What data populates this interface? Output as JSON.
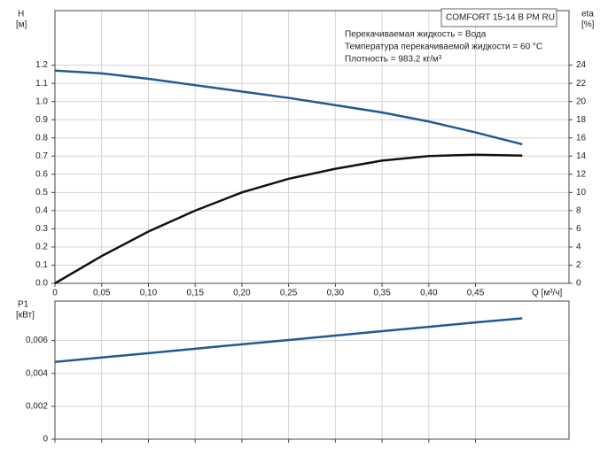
{
  "chart_data": [
    {
      "type": "line",
      "legend_title": "COMFORT 15-14 B PM RU",
      "annotations": [
        "Перекачиваемая жидкость = Вода",
        "Температура перекачиваемой жидкости = 60 °C",
        "Плотность = 983.2 кг/м³"
      ],
      "y_label": "H",
      "y_unit": "[м]",
      "y2_label": "eta",
      "y2_unit": "[%]",
      "x_label": "Q [м³/ч]",
      "x": [
        0,
        0.05,
        0.1,
        0.15,
        0.2,
        0.25,
        0.3,
        0.35,
        0.4,
        0.45,
        0.5
      ],
      "series": [
        {
          "color": "#1f5a96",
          "values": [
            1.17,
            1.155,
            1.125,
            1.09,
            1.055,
            1.02,
            0.98,
            0.94,
            0.89,
            0.83,
            0.765
          ]
        },
        {
          "color": "#111111",
          "axis": "y2",
          "values": [
            0,
            3.0,
            5.7,
            8.0,
            10.0,
            11.5,
            12.6,
            13.5,
            14.0,
            14.15,
            14.05
          ]
        }
      ],
      "xlim": [
        0,
        0.55
      ],
      "xticks": [
        0,
        {
          "value": 0.05,
          "label": "0,05"
        },
        {
          "value": 0.1,
          "label": "0,10"
        },
        {
          "value": 0.15,
          "label": "0,15"
        },
        {
          "value": 0.2,
          "label": "0,20"
        },
        {
          "value": 0.25,
          "label": "0,25"
        },
        {
          "value": 0.3,
          "label": "0,30"
        },
        {
          "value": 0.35,
          "label": "0,35"
        },
        {
          "value": 0.4,
          "label": "0,40"
        },
        {
          "value": 0.45,
          "label": "0,45"
        }
      ],
      "ylim": [
        0,
        1.5
      ],
      "yticks": [
        {
          "value": 0,
          "label": "0.0"
        },
        0.1,
        0.2,
        0.3,
        0.4,
        0.5,
        0.6,
        0.7,
        0.8,
        0.9,
        {
          "value": 1,
          "label": "1.0"
        },
        1.1,
        1.2
      ],
      "y2lim": [
        0,
        30
      ],
      "y2ticks": [
        0,
        2,
        4,
        6,
        8,
        10,
        12,
        14,
        16,
        18,
        20,
        22,
        24
      ],
      "grid": true
    },
    {
      "type": "line",
      "y_label": "P1",
      "y_unit": "[кВт]",
      "x": [
        0,
        0.05,
        0.1,
        0.15,
        0.2,
        0.25,
        0.3,
        0.35,
        0.4,
        0.45,
        0.5
      ],
      "series": [
        {
          "color": "#1f5a96",
          "values": [
            0.0047,
            0.00497,
            0.00523,
            0.0055,
            0.00577,
            0.00603,
            0.0063,
            0.00657,
            0.00683,
            0.0071,
            0.00735
          ]
        }
      ],
      "xlim": [
        0,
        0.55
      ],
      "xticks": [
        0,
        0.05,
        0.1,
        0.15,
        0.2,
        0.25,
        0.3,
        0.35,
        0.4,
        0.45
      ],
      "xtick_labels": false,
      "ylim": [
        0,
        0.0084
      ],
      "yticks": [
        0,
        {
          "value": 0.002,
          "label": "0,002"
        },
        {
          "value": 0.004,
          "label": "0,004"
        },
        {
          "value": 0.006,
          "label": "0,006"
        }
      ],
      "grid": true
    }
  ]
}
